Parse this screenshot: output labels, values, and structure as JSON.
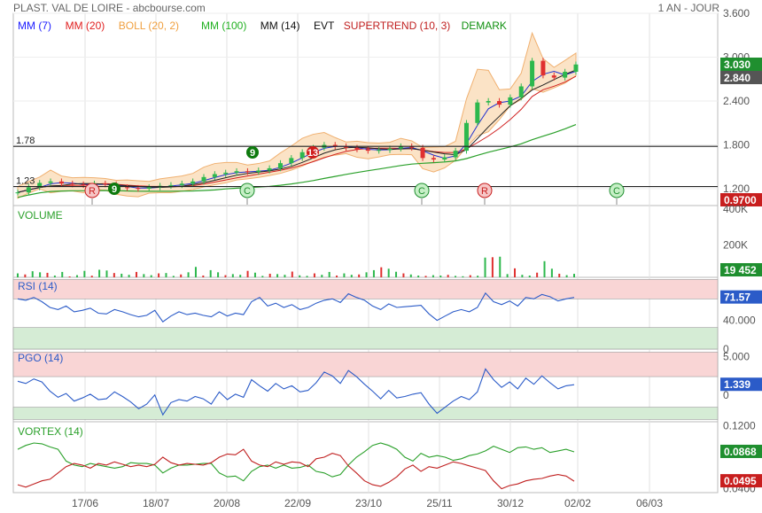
{
  "header": {
    "title": "PLAST. VAL DE LOIRE - abcbourse.com",
    "period": "1 AN - JOUR"
  },
  "legend": [
    {
      "label": "MM (7)",
      "color": "#1a1aff"
    },
    {
      "label": "MM (20)",
      "color": "#e02020"
    },
    {
      "label": "BOLL (20, 2)",
      "color": "#f0a040"
    },
    {
      "label": "MM (100)",
      "color": "#20b020"
    },
    {
      "label": "MM (14)",
      "color": "#111111"
    },
    {
      "label": "EVT",
      "color": "#111111"
    },
    {
      "label": "SUPERTREND (10, 3)",
      "color": "#c02020"
    },
    {
      "label": "DEMARK",
      "color": "#109010"
    }
  ],
  "x_ticks": [
    "17/06",
    "18/07",
    "20/08",
    "22/09",
    "23/10",
    "25/11",
    "30/12",
    "02/02",
    "06/03"
  ],
  "colors": {
    "up": "#2db84d",
    "down": "#e03030",
    "rsi_line": "#2b5bc8",
    "band": "#fbe3c6",
    "zone_high": "#f9d5d5",
    "zone_low": "#d5ecd5"
  },
  "chart_data": [
    {
      "type": "line",
      "panel": "price",
      "y_ticks": [
        "3.600",
        "3.000",
        "2.400",
        "1.800",
        "1.200"
      ],
      "ylim": [
        0.97,
        3.6
      ],
      "hlines": [
        {
          "label": "1.78",
          "value": 1.78
        },
        {
          "label": "1.23",
          "value": 1.23
        }
      ],
      "badges": [
        {
          "label": "3.030",
          "value": 3.03,
          "color": "#1f8f2f"
        },
        {
          "label": "2.840",
          "value": 2.84,
          "color": "#555555"
        },
        {
          "label": "0.9700",
          "value": 0.97,
          "color": "#c81e1e"
        }
      ],
      "events": [
        "R",
        "C",
        "C",
        "R",
        "C"
      ],
      "demark": [
        "9",
        "9",
        "13"
      ],
      "series": [
        {
          "values": [
            1.15,
            1.22,
            1.28,
            1.3,
            1.27,
            1.26,
            1.25,
            1.27,
            1.26,
            1.22,
            1.21,
            1.2,
            1.22,
            1.24,
            1.25,
            1.27,
            1.3,
            1.36,
            1.4,
            1.42,
            1.44,
            1.43,
            1.45,
            1.48,
            1.55,
            1.62,
            1.7,
            1.76,
            1.8,
            1.78,
            1.76,
            1.74,
            1.72,
            1.73,
            1.75,
            1.78,
            1.76,
            1.62,
            1.6,
            1.63,
            1.72,
            2.1,
            2.38,
            2.4,
            2.35,
            2.45,
            2.6,
            2.95,
            2.75,
            2.72,
            2.8,
            2.9
          ]
        }
      ]
    },
    {
      "type": "bar",
      "panel": "volume",
      "title": "VOLUME",
      "y_ticks": [
        "400K",
        "200K"
      ],
      "ylim": [
        0,
        400000
      ],
      "last": "19 452",
      "values": [
        22000,
        16000,
        34000,
        28000,
        25000,
        10000,
        30000,
        5000,
        12000,
        36000,
        9000,
        42000,
        38000,
        24000,
        20000,
        14000,
        30000,
        18000,
        12000,
        22000,
        24000,
        8000,
        16000,
        28000,
        58000,
        10000,
        40000,
        28000,
        12000,
        18000,
        14000,
        36000,
        26000,
        8000,
        20000,
        18000,
        14000,
        32000,
        11000,
        8000,
        22000,
        14000,
        30000,
        10000,
        22000,
        14000,
        16000,
        28000,
        40000,
        56000,
        48000,
        31000,
        22000,
        16000,
        10000,
        8000,
        12000,
        10000,
        14000,
        8000,
        6000,
        12000,
        9000,
        110000,
        112000,
        115000,
        18000,
        50000,
        14000,
        10000,
        26000,
        90000,
        48000,
        20000,
        12000,
        19452
      ]
    },
    {
      "type": "line",
      "panel": "rsi",
      "title": "RSI (14)",
      "y_ticks": [
        "40.000",
        "0"
      ],
      "ylim": [
        0,
        100
      ],
      "last": "71.57",
      "values": [
        70,
        68,
        72,
        66,
        58,
        55,
        60,
        52,
        54,
        57,
        50,
        49,
        55,
        52,
        48,
        45,
        47,
        54,
        38,
        46,
        52,
        48,
        50,
        47,
        45,
        52,
        46,
        50,
        48,
        66,
        72,
        60,
        64,
        58,
        62,
        55,
        58,
        64,
        68,
        70,
        65,
        77,
        72,
        68,
        60,
        55,
        63,
        58,
        59,
        60,
        61,
        49,
        40,
        46,
        52,
        55,
        52,
        58,
        78,
        66,
        62,
        67,
        60,
        72,
        70,
        76,
        73,
        67,
        70,
        72
      ]
    },
    {
      "type": "line",
      "panel": "pgo",
      "title": "PGO (14)",
      "y_ticks": [
        "5.000",
        "0"
      ],
      "ylim": [
        -3.5,
        6
      ],
      "last": "1.339",
      "values": [
        1.8,
        1.5,
        2.1,
        1.7,
        0.5,
        -0.3,
        0.2,
        -0.8,
        -0.4,
        0.1,
        -0.6,
        -0.5,
        0.4,
        -0.2,
        -0.9,
        -1.8,
        -1.2,
        0.0,
        -2.6,
        -1.0,
        -0.6,
        -0.8,
        -0.2,
        -0.5,
        -1.2,
        0.4,
        -0.6,
        0.1,
        -0.3,
        2.0,
        1.2,
        0.5,
        1.5,
        0.8,
        1.2,
        0.4,
        0.6,
        1.6,
        3.0,
        2.5,
        1.5,
        3.2,
        2.4,
        1.4,
        0.5,
        -0.5,
        0.6,
        -0.4,
        -0.2,
        0.1,
        0.3,
        -1.2,
        -2.4,
        -1.6,
        -0.8,
        -0.2,
        -0.6,
        0.4,
        3.4,
        2.0,
        1.0,
        1.7,
        0.8,
        2.2,
        1.4,
        2.5,
        1.6,
        0.8,
        1.2,
        1.339
      ]
    },
    {
      "type": "line",
      "panel": "vortex",
      "title": "VORTEX (14)",
      "y_ticks": [
        "0.1200",
        "0.0400"
      ],
      "ylim": [
        0.035,
        0.125
      ],
      "badges": [
        {
          "label": "0.0868",
          "color": "#1f8f2f"
        },
        {
          "label": "0.0495",
          "color": "#c81e1e"
        }
      ],
      "series": [
        {
          "color": "#2aa02a",
          "values": [
            0.09,
            0.095,
            0.098,
            0.097,
            0.093,
            0.09,
            0.075,
            0.07,
            0.068,
            0.072,
            0.07,
            0.068,
            0.066,
            0.068,
            0.073,
            0.072,
            0.072,
            0.07,
            0.06,
            0.066,
            0.07,
            0.07,
            0.071,
            0.072,
            0.072,
            0.06,
            0.055,
            0.056,
            0.05,
            0.062,
            0.068,
            0.07,
            0.066,
            0.07,
            0.066,
            0.067,
            0.07,
            0.062,
            0.06,
            0.055,
            0.058,
            0.07,
            0.08,
            0.087,
            0.095,
            0.098,
            0.095,
            0.09,
            0.08,
            0.075,
            0.085,
            0.08,
            0.082,
            0.08,
            0.076,
            0.078,
            0.082,
            0.084,
            0.088,
            0.094,
            0.09,
            0.086,
            0.092,
            0.093,
            0.09,
            0.092,
            0.086,
            0.088,
            0.09,
            0.0868
          ]
        },
        {
          "color": "#c02020",
          "values": [
            0.045,
            0.042,
            0.046,
            0.05,
            0.052,
            0.06,
            0.068,
            0.072,
            0.07,
            0.066,
            0.072,
            0.07,
            0.074,
            0.071,
            0.068,
            0.07,
            0.068,
            0.071,
            0.08,
            0.073,
            0.07,
            0.072,
            0.071,
            0.07,
            0.073,
            0.08,
            0.084,
            0.083,
            0.09,
            0.075,
            0.07,
            0.068,
            0.074,
            0.071,
            0.074,
            0.073,
            0.068,
            0.078,
            0.08,
            0.085,
            0.082,
            0.069,
            0.06,
            0.05,
            0.045,
            0.043,
            0.048,
            0.055,
            0.065,
            0.07,
            0.062,
            0.068,
            0.066,
            0.07,
            0.074,
            0.072,
            0.069,
            0.066,
            0.063,
            0.05,
            0.04,
            0.044,
            0.046,
            0.05,
            0.052,
            0.053,
            0.056,
            0.058,
            0.056,
            0.0495
          ]
        }
      ]
    }
  ]
}
